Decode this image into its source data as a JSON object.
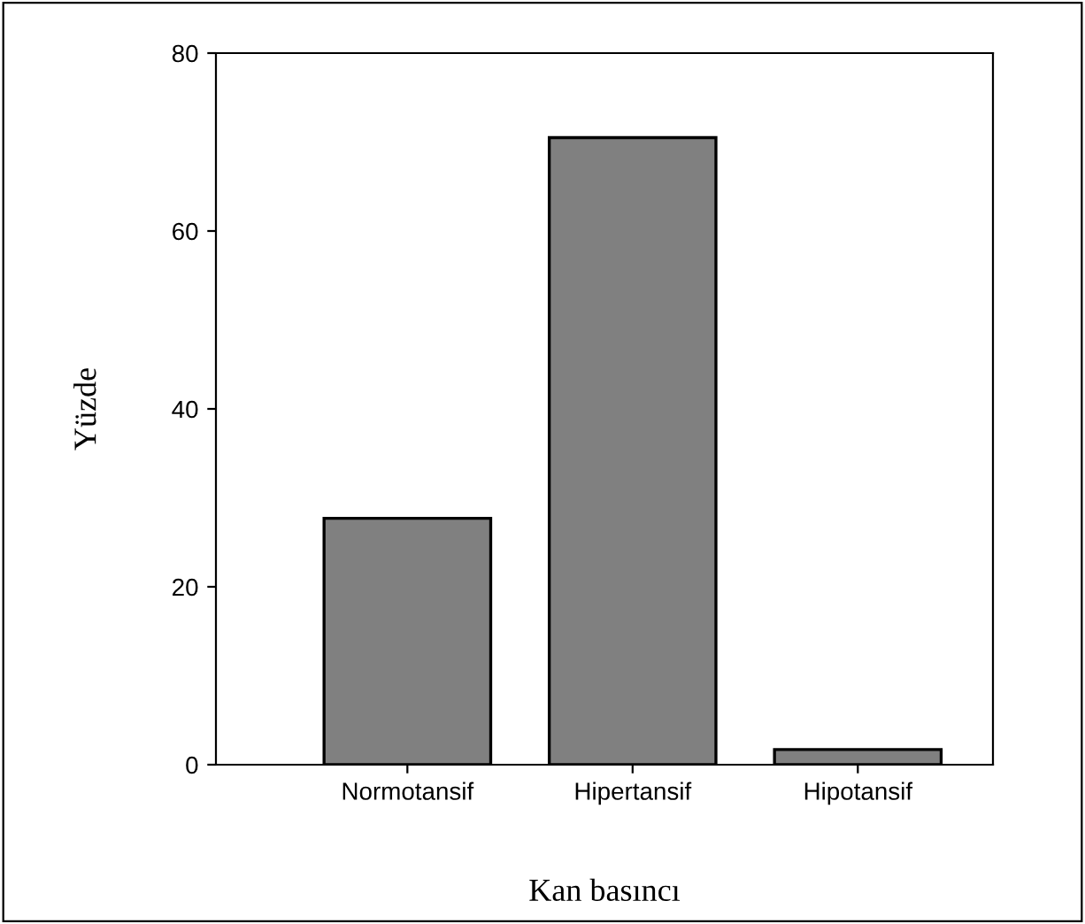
{
  "chart_data": {
    "type": "bar",
    "xlabel": "Kan basıncı",
    "ylabel": "Yüzde",
    "categories": [
      "Normotansif",
      "Hipertansif",
      "Hipotansif"
    ],
    "values": [
      27.7,
      70.5,
      1.7
    ],
    "color": "#808080",
    "ylim": [
      0,
      80
    ],
    "yticks": [
      0,
      20,
      40,
      60,
      80
    ],
    "grid": false,
    "legend": false
  }
}
